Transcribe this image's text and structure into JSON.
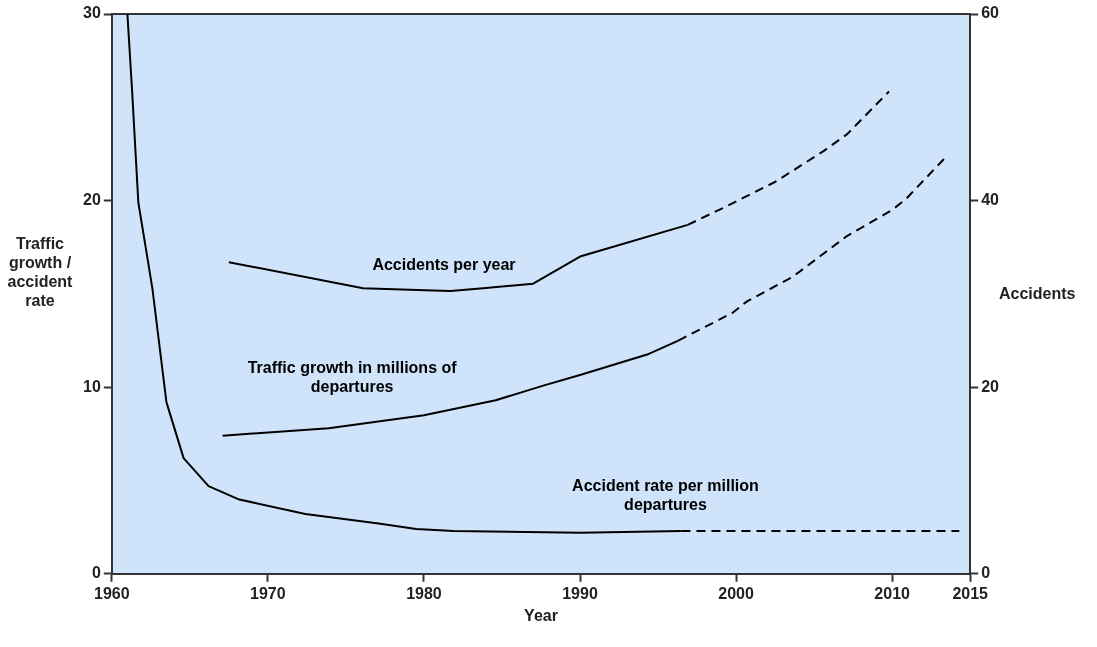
{
  "chart_data": {
    "type": "line",
    "xlabel": "Year",
    "ylabel": "Traffic growth / accident rate",
    "y2label": "Accidents",
    "xlim": [
      1960,
      2015
    ],
    "xticks": [
      1960,
      1970,
      1980,
      1990,
      2000,
      2010,
      2015
    ],
    "ylim": [
      0,
      30
    ],
    "yticks": [
      0,
      10,
      20,
      30
    ],
    "y2lim": [
      0,
      60
    ],
    "y2ticks": [
      0,
      20,
      40,
      60
    ],
    "grid": false,
    "legend": false,
    "marker": "none",
    "series": [
      {
        "name": "Accident rate per million departures",
        "color": "#000000",
        "line_style": "solid",
        "x": [
          1961.0,
          1961.3,
          1961.7,
          1962.6,
          1963.5,
          1964.6,
          1966.2,
          1968.1,
          1972.4,
          1977.1,
          1979.5,
          1981.9,
          1990,
          1996.5
        ],
        "values": [
          30,
          25.9,
          19.9,
          15.3,
          9.2,
          6.2,
          4.7,
          4.0,
          3.2,
          2.7,
          2.4,
          2.3,
          2.2,
          2.3
        ]
      },
      {
        "color": "#000000",
        "line_style": "dashed",
        "x": [
          1996.5,
          2005,
          2014.3
        ],
        "values": [
          2.3,
          2.3,
          2.3
        ]
      },
      {
        "name": "Traffic growth in millions of departures",
        "color": "#000000",
        "line_style": "solid",
        "x": [
          1967.1,
          1973.9,
          1980.0,
          1984.6,
          1987.7,
          1990.0,
          1994.3,
          1996.3
        ],
        "values": [
          7.4,
          7.8,
          8.5,
          9.3,
          10.1,
          10.65,
          11.75,
          12.5
        ]
      },
      {
        "color": "#000000",
        "line_style": "dashed",
        "x": [
          1996.3,
          1999.8,
          2000.7,
          2003.6,
          2007.1,
          2010.0,
          2010.9,
          2013.4
        ],
        "values": [
          12.5,
          14.0,
          14.6,
          15.9,
          18.1,
          19.5,
          20.1,
          22.3
        ]
      },
      {
        "name": "Accidents per year",
        "color": "#000000",
        "line_style": "solid",
        "axis": "y2",
        "x": [
          1967.5,
          1976.1,
          1980.1,
          1981.7,
          1983.8,
          1987.0,
          1990.0,
          1996.9
        ],
        "values": [
          33.4,
          30.6,
          30.4,
          30.3,
          30.6,
          31.1,
          34.0,
          37.4
        ]
      },
      {
        "color": "#000000",
        "line_style": "dashed",
        "axis": "y2",
        "x": [
          1996.9,
          1999.4,
          2002.5,
          2005.6,
          2007.1,
          2009.8
        ],
        "values": [
          37.4,
          39.4,
          42.0,
          45.3,
          47.1,
          51.7
        ]
      }
    ]
  }
}
